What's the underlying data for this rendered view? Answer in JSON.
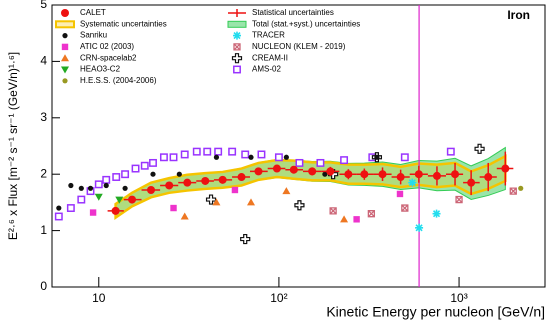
{
  "chart_data": {
    "type": "scatter",
    "title": "Iron",
    "x_label": "Kinetic Energy per nucleon [GeV/n]",
    "y_label": "E²·⁶ x Flux [m⁻² s⁻¹ sr⁻¹ (GeV/n)¹·⁶]",
    "xlog": true,
    "xlim": [
      5.5,
      3000
    ],
    "ylim": [
      0,
      5
    ],
    "xticks": [
      10,
      {
        "value": 100,
        "label": "10²"
      },
      {
        "value": 1000,
        "label": "10³"
      }
    ],
    "yticks": [
      0,
      1,
      2,
      3,
      4,
      5
    ],
    "vline": 600,
    "vline_color": "#dd22cc",
    "bands": {
      "syst_name": "Systematic uncertainties",
      "syst_color": "#f5c400",
      "stat_name": "Statistical uncertainties",
      "stat_color": "#ee1111",
      "total_name": "Total (stat.+syst.) uncertainties",
      "total_color": "#33cc55"
    },
    "series": [
      {
        "name": "CALET",
        "color": "#ee1111",
        "marker": "circle",
        "x": [
          12.4,
          15.3,
          19.5,
          24.6,
          31,
          39,
          48.7,
          62,
          77,
          97.5,
          121,
          153,
          193,
          243,
          298,
          376,
          474,
          598,
          754,
          950,
          1167,
          1452,
          1807
        ],
        "values": [
          1.35,
          1.55,
          1.72,
          1.8,
          1.85,
          1.88,
          1.9,
          1.95,
          2.05,
          2.1,
          2.08,
          2.05,
          2.05,
          2.0,
          2.0,
          2.0,
          1.95,
          2.0,
          1.97,
          2.0,
          1.85,
          1.95,
          2.1
        ],
        "stat_errors": [
          0.03,
          0.03,
          0.03,
          0.03,
          0.04,
          0.04,
          0.04,
          0.05,
          0.05,
          0.06,
          0.06,
          0.07,
          0.08,
          0.09,
          0.1,
          0.12,
          0.13,
          0.15,
          0.17,
          0.2,
          0.22,
          0.25,
          0.3
        ],
        "syst_errors": [
          0.12,
          0.12,
          0.13,
          0.13,
          0.14,
          0.14,
          0.14,
          0.15,
          0.15,
          0.15,
          0.16,
          0.16,
          0.16,
          0.17,
          0.17,
          0.18,
          0.18,
          0.19,
          0.2,
          0.2,
          0.2,
          0.21,
          0.22
        ]
      },
      {
        "name": "Sanriku",
        "color": "#111111",
        "marker": "circle",
        "x": [
          6,
          7,
          8,
          9,
          11,
          14,
          20,
          28,
          45,
          70,
          110,
          180,
          350
        ],
        "values": [
          1.4,
          1.8,
          1.75,
          1.75,
          1.8,
          1.75,
          2.0,
          2.0,
          2.3,
          2.3,
          2.3,
          2.0,
          2.3
        ]
      },
      {
        "name": "ATIC 02 (2003)",
        "color": "#ee33cc",
        "marker": "square",
        "x": [
          9.3,
          26,
          57,
          270,
          470
        ],
        "values": [
          1.32,
          1.4,
          1.72,
          1.2,
          1.65
        ]
      },
      {
        "name": "CRN-spacelab2",
        "color": "#ee7722",
        "marker": "triangle",
        "x": [
          30,
          45,
          70,
          110,
          230
        ],
        "values": [
          1.25,
          1.5,
          1.5,
          1.7,
          1.2
        ]
      },
      {
        "name": "HEAO3-C2",
        "color": "#22aa22",
        "marker": "triangle-down",
        "x": [
          10,
          13
        ],
        "values": [
          1.6,
          1.55
        ]
      },
      {
        "name": "H.E.S.S. (2004-2006)",
        "color": "#999922",
        "marker": "circle",
        "x": [
          2200
        ],
        "values": [
          1.75
        ]
      },
      {
        "name": "TRACER",
        "color": "#22ddee",
        "marker": "star",
        "x": [
          550,
          750,
          600
        ],
        "values": [
          1.85,
          1.3,
          1.05
        ]
      },
      {
        "name": "NUCLEON (KLEM - 2019)",
        "color": "#cc6677",
        "marker": "x-square",
        "x": [
          200,
          326,
          500,
          1000,
          2000
        ],
        "values": [
          1.35,
          1.3,
          1.4,
          1.55,
          1.7
        ]
      },
      {
        "name": "CREAM-II",
        "color": "#111111",
        "marker": "open-cross",
        "x": [
          42,
          65,
          130,
          200,
          350,
          1300
        ],
        "values": [
          1.55,
          0.85,
          1.45,
          2.0,
          2.3,
          2.45
        ]
      },
      {
        "name": "AMS-02",
        "color": "#9933ff",
        "marker": "open-square",
        "x": [
          6,
          7,
          8,
          9,
          10,
          11,
          12.5,
          14,
          16,
          18,
          20,
          23,
          26,
          30,
          35,
          40,
          46,
          55,
          65,
          80,
          100,
          130,
          170,
          230,
          330,
          500,
          900
        ],
        "values": [
          1.25,
          1.4,
          1.55,
          1.7,
          1.82,
          1.9,
          1.95,
          2.0,
          2.1,
          2.15,
          2.2,
          2.3,
          2.3,
          2.35,
          2.4,
          2.4,
          2.4,
          2.4,
          2.35,
          2.35,
          2.3,
          2.2,
          2.2,
          2.25,
          2.3,
          2.3,
          2.4
        ]
      }
    ]
  }
}
